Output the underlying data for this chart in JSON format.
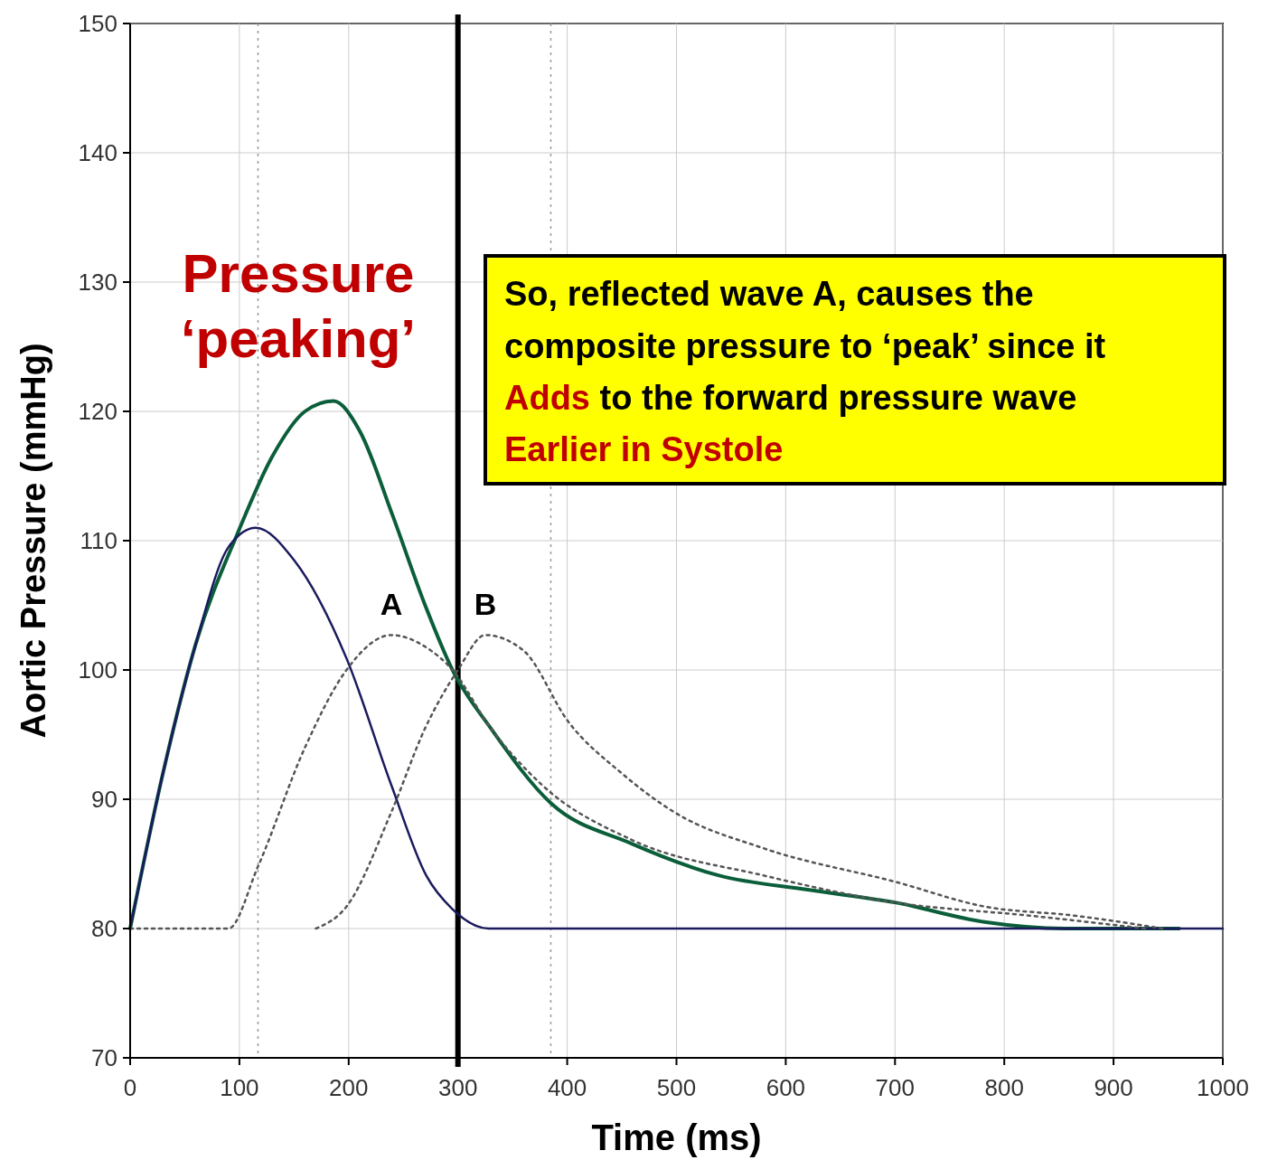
{
  "chart_data": {
    "type": "line",
    "xlabel": "Time (ms)",
    "ylabel": "Aortic Pressure (mmHg)",
    "x": [
      0,
      30,
      60,
      99,
      130,
      160,
      186,
      210,
      240,
      270,
      295,
      330,
      385,
      458,
      539,
      620,
      701,
      782,
      855,
      930,
      960
    ],
    "xlim": [
      0,
      1000
    ],
    "ylim": [
      70,
      150
    ],
    "xticks": [
      0,
      100,
      200,
      300,
      400,
      500,
      600,
      700,
      800,
      900,
      1000
    ],
    "yticks": [
      70,
      80,
      90,
      100,
      110,
      120,
      130,
      140,
      150
    ],
    "grid": true,
    "series": [
      {
        "color": "#0b5e3a",
        "values": [
          80,
          92,
          102,
          110.7,
          116.5,
          120,
          120.8,
          118.5,
          112,
          105,
          100,
          95.5,
          89.7,
          86.6,
          84.1,
          83,
          82,
          80.5,
          80,
          80,
          80
        ]
      },
      {
        "color": "#1a1a5e",
        "x": [
          0,
          30,
          60,
          90,
          115,
          150,
          198,
          239,
          271,
          295,
          328,
          400,
          600,
          800,
          1000
        ],
        "values": [
          80,
          92,
          102,
          109.5,
          111,
          108.5,
          100.9,
          91.1,
          84.1,
          81.5,
          80,
          80,
          80,
          80,
          80
        ]
      },
      {
        "name": "A",
        "color": "#555555",
        "line_style": "dotted",
        "x": [
          0,
          90,
          117,
          160,
          198,
          239,
          270,
          295,
          330,
          377,
          458,
          580,
          701,
          823,
          929
        ],
        "values": [
          80,
          80,
          84.8,
          94,
          100,
          102.7,
          101.8,
          100,
          95.5,
          91.1,
          86.9,
          84.1,
          82,
          81,
          80
        ]
      },
      {
        "name": "B",
        "color": "#555555",
        "line_style": "dotted",
        "x": [
          170,
          198,
          239,
          270,
          300,
          325,
          360,
          401,
          450,
          498,
          580,
          701,
          782,
          864,
          945
        ],
        "values": [
          80,
          81.7,
          89,
          95.5,
          100,
          102.7,
          101.5,
          96,
          92,
          89,
          86.2,
          83.6,
          81.7,
          81,
          80
        ]
      }
    ],
    "ref_lines": [
      {
        "axis": "x",
        "value": 300,
        "color": "#000000",
        "line_style": "solid"
      },
      {
        "axis": "x",
        "value": 117,
        "color": "#999999",
        "line_style": "dotted"
      },
      {
        "axis": "x",
        "value": 385,
        "color": "#999999",
        "line_style": "dotted"
      }
    ],
    "annotations": [
      "Pressure ‘peaking’",
      "So, reflected wave A, causes the",
      "composite pressure to ‘peak’ since it",
      "Adds",
      "to the forward pressure wave",
      "Earlier in Systole"
    ]
  }
}
